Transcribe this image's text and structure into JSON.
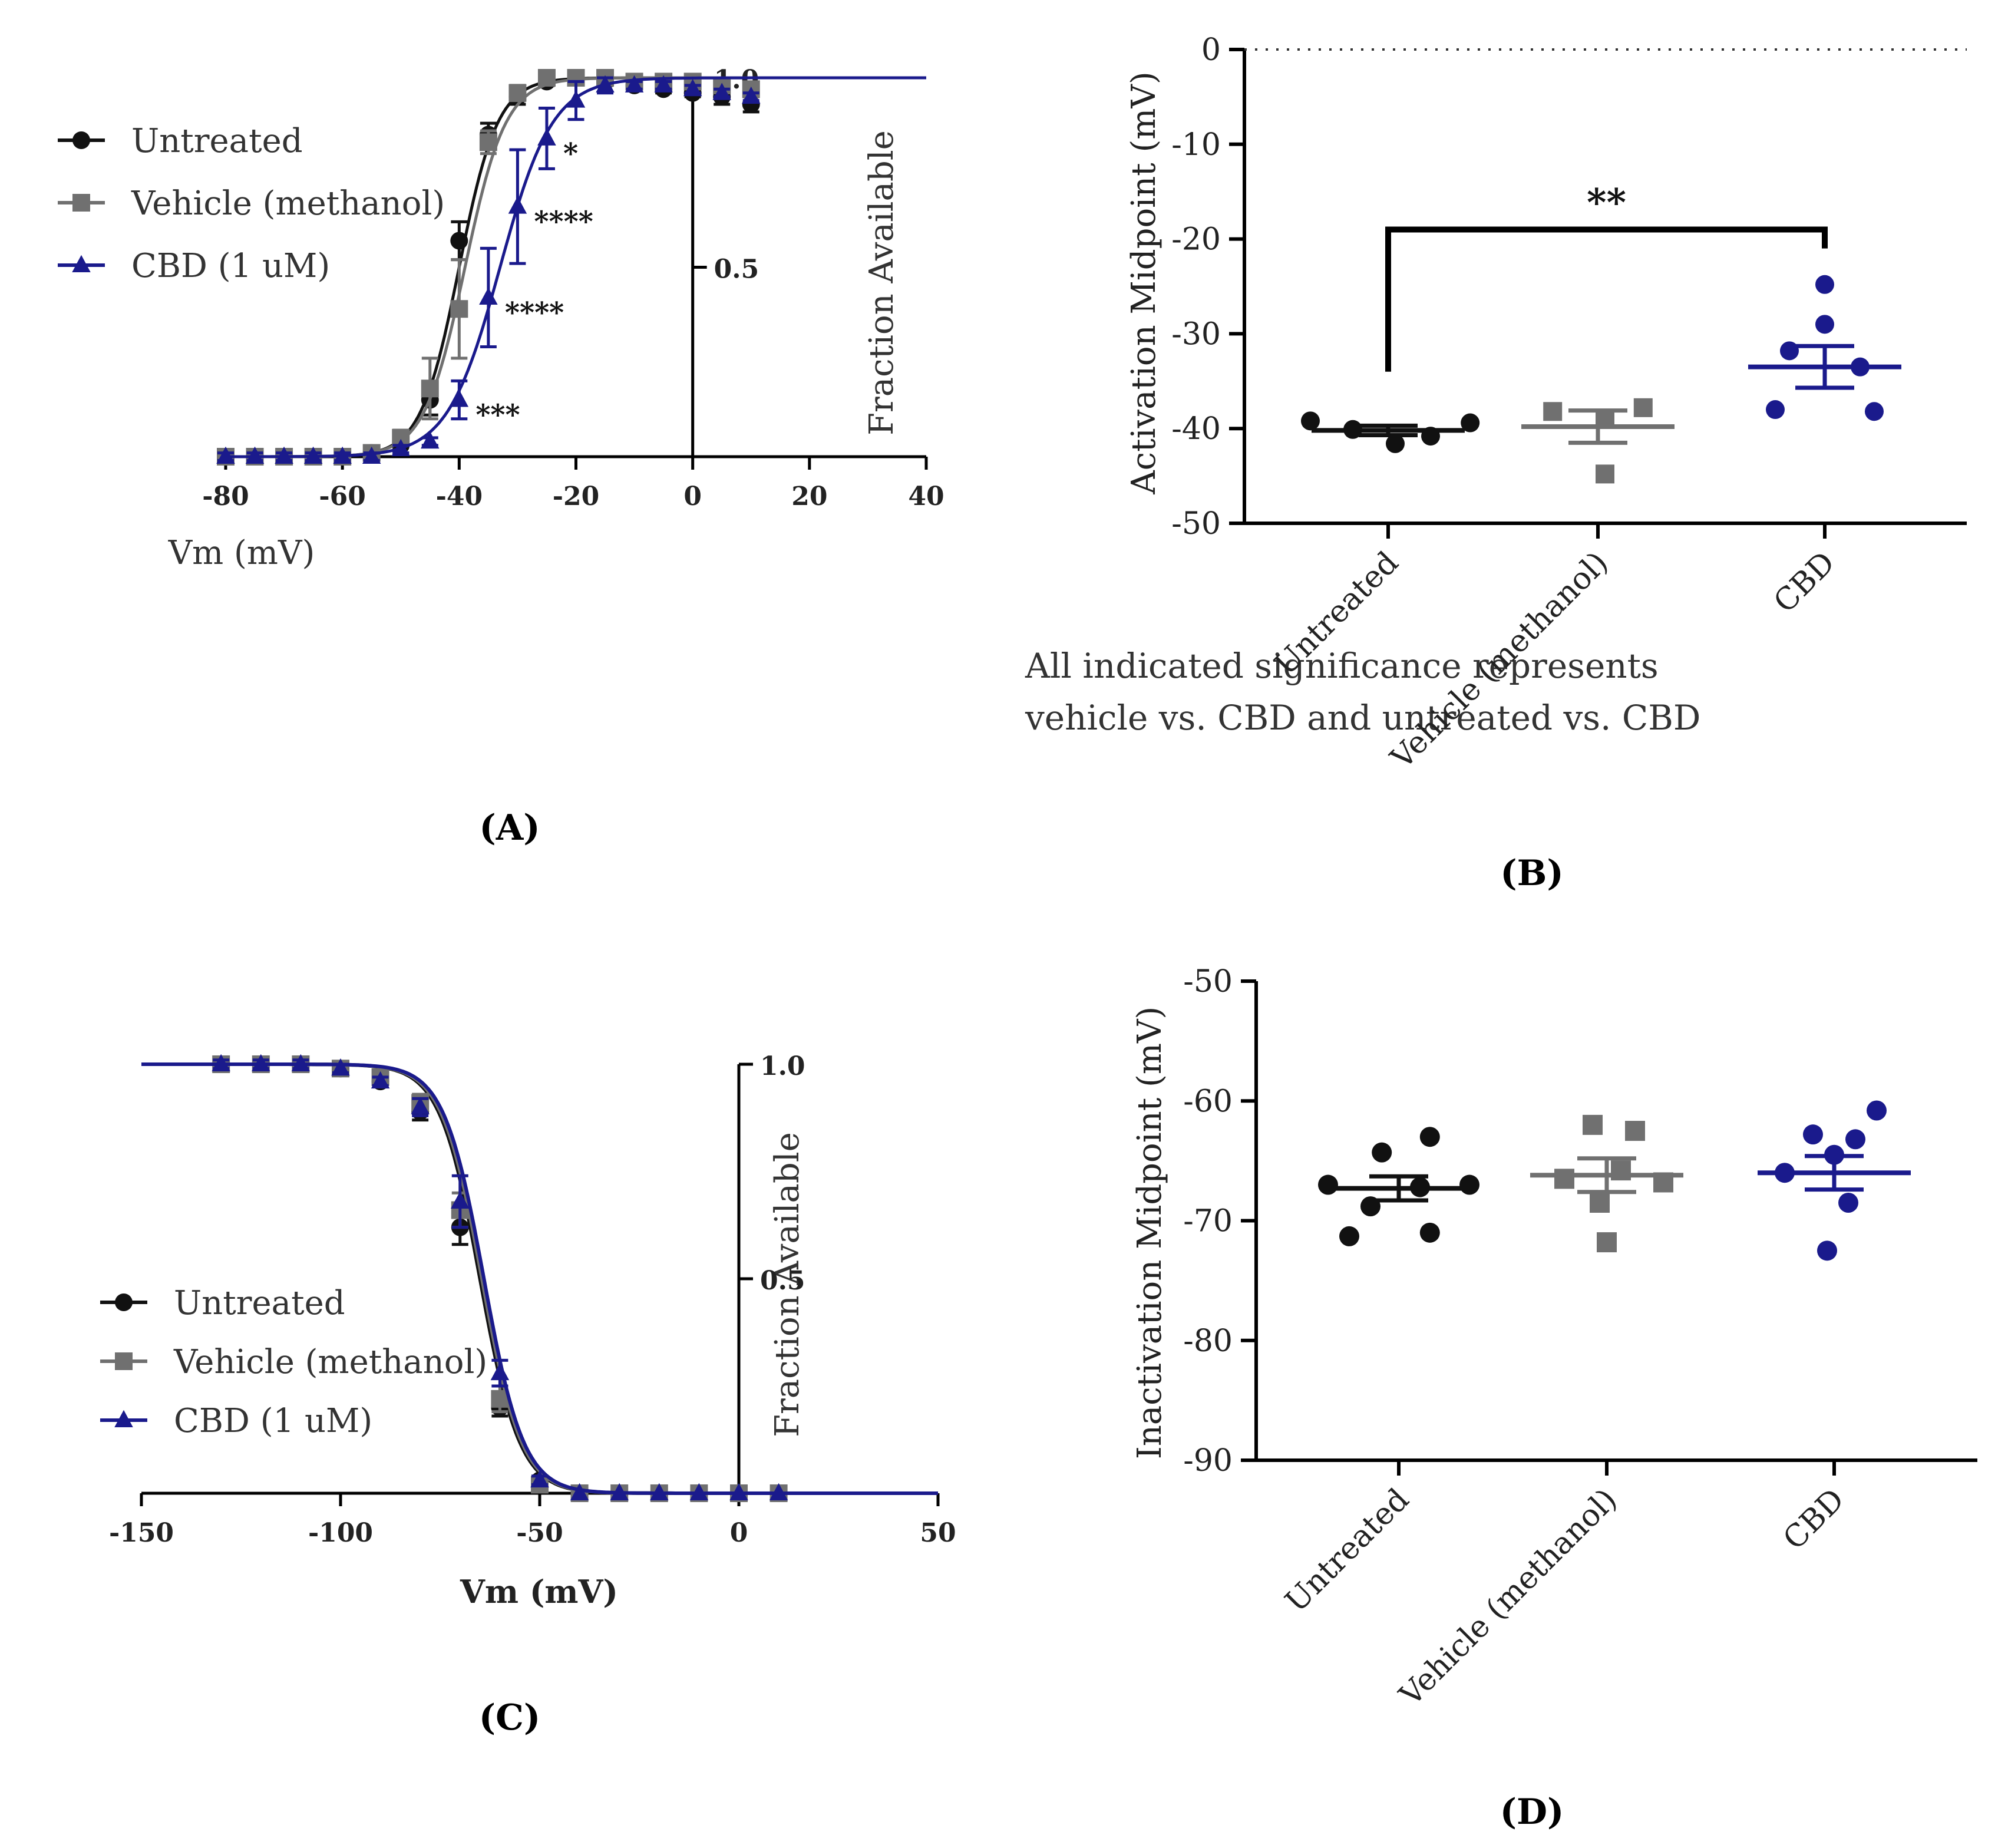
{
  "panels": {
    "A": {
      "label": "(A)",
      "note_line1": "All indicated significance represents",
      "note_line2": "vehicle vs. CBD and untreated vs. CBD"
    },
    "B": {
      "label": "(B)"
    },
    "C": {
      "label": "(C)"
    },
    "D": {
      "label": "(D)"
    }
  },
  "colors": {
    "untreated": "#111111",
    "vehicle": "#707070",
    "cbd": "#1a1a8c"
  },
  "chart_data": [
    {
      "id": "A",
      "type": "line",
      "xlabel": "Vm (mV)",
      "ylabel": "Fraction Available",
      "xlim": [
        -80,
        40
      ],
      "ylim": [
        0,
        1.0
      ],
      "xticks": [
        "-80",
        "-60",
        "-40",
        "-20",
        "0",
        "20",
        "40"
      ],
      "yticks": [
        "0.5",
        "1.0"
      ],
      "legend": [
        "Untreated",
        "Vehicle (methanol)",
        "CBD (1 uM)"
      ],
      "x": [
        -80,
        -75,
        -70,
        -65,
        -60,
        -55,
        -50,
        -45,
        -40,
        -35,
        -30,
        -25,
        -20,
        -15,
        -10,
        -5,
        0,
        5,
        10
      ],
      "series": [
        {
          "name": "Untreated",
          "marker": "circle",
          "fit": {
            "v_half": -40,
            "k": 3.3
          },
          "values": [
            0,
            0,
            0,
            0,
            0,
            0.01,
            0.03,
            0.15,
            0.57,
            0.85,
            0.95,
            0.99,
            1.0,
            0.99,
            0.98,
            0.97,
            0.96,
            0.95,
            0.93
          ],
          "err": [
            0.01,
            0.01,
            0.01,
            0.01,
            0.01,
            0.01,
            0.02,
            0.04,
            0.05,
            0.03,
            0.02,
            0.01,
            0.01,
            0.01,
            0.01,
            0.01,
            0.01,
            0.02,
            0.02
          ]
        },
        {
          "name": "Vehicle (methanol)",
          "marker": "square",
          "fit": {
            "v_half": -39,
            "k": 3.5
          },
          "values": [
            0,
            0,
            0,
            0,
            0,
            0.01,
            0.05,
            0.18,
            0.39,
            0.83,
            0.96,
            1.0,
            1.0,
            1.0,
            0.99,
            0.99,
            0.99,
            0.98,
            0.97
          ],
          "err": [
            0.01,
            0.01,
            0.01,
            0.01,
            0.01,
            0.01,
            0.02,
            0.08,
            0.13,
            0.03,
            0.02,
            0.01,
            0.01,
            0.01,
            0.01,
            0.01,
            0.01,
            0.01,
            0.01
          ]
        },
        {
          "name": "CBD (1 uM)",
          "marker": "triangle",
          "fit": {
            "v_half": -33,
            "k": 4.5
          },
          "values": [
            0,
            0,
            0,
            0,
            0,
            0,
            0.02,
            0.04,
            0.15,
            0.42,
            0.66,
            0.84,
            0.94,
            0.98,
            0.98,
            0.98,
            0.97,
            0.96,
            0.95
          ],
          "err": [
            0.01,
            0.01,
            0.01,
            0.01,
            0.01,
            0.01,
            0.01,
            0.01,
            0.05,
            0.13,
            0.15,
            0.08,
            0.05,
            0.02,
            0.01,
            0.01,
            0.01,
            0.01,
            0.01
          ]
        }
      ],
      "annotations": [
        {
          "x": -40,
          "y": 0.15,
          "text": "***"
        },
        {
          "x": -35,
          "y": 0.42,
          "text": "****"
        },
        {
          "x": -30,
          "y": 0.66,
          "text": "****"
        },
        {
          "x": -25,
          "y": 0.84,
          "text": "*"
        }
      ]
    },
    {
      "id": "B",
      "type": "scatter",
      "ylabel": "Activation  Midpoint (mV)",
      "ylim": [
        -50,
        0
      ],
      "yticks": [
        "0",
        "-10",
        "-20",
        "-30",
        "-40",
        "-50"
      ],
      "categories": [
        "Untreated",
        "Vehicle (methanol)",
        "CBD"
      ],
      "series": [
        {
          "name": "Untreated",
          "marker": "circle",
          "mean": -40.2,
          "sem": 0.5,
          "points": [
            -39.2,
            -40.1,
            -41.6,
            -40.8,
            -39.4
          ],
          "offsets": [
            -0.55,
            -0.25,
            0.05,
            0.3,
            0.58
          ]
        },
        {
          "name": "Vehicle (methanol)",
          "marker": "square",
          "mean": -39.8,
          "sem": 1.7,
          "points": [
            -38.2,
            -39.0,
            -37.8,
            -44.8
          ],
          "offsets": [
            -0.32,
            0.05,
            0.32,
            0.05
          ]
        },
        {
          "name": "CBD",
          "marker": "circle",
          "mean": -33.5,
          "sem": 2.2,
          "points": [
            -24.8,
            -29.0,
            -31.8,
            -33.5,
            -38.0,
            -38.2
          ],
          "offsets": [
            0.0,
            0.0,
            -0.25,
            0.25,
            -0.35,
            0.35
          ]
        }
      ],
      "significance": {
        "from": "Untreated",
        "to": "CBD",
        "y": -19,
        "text": "**"
      },
      "reference_line": 0
    },
    {
      "id": "C",
      "type": "line",
      "xlabel": "Vm (mV)",
      "ylabel": "Fraction Available",
      "xlim": [
        -150,
        50
      ],
      "ylim": [
        0,
        1.0
      ],
      "xticks": [
        "-150",
        "-100",
        "-50",
        "0",
        "50"
      ],
      "yticks": [
        "0.5",
        "1.0"
      ],
      "legend": [
        "Untreated",
        "Vehicle (methanol)",
        "CBD (1 uM)"
      ],
      "x": [
        -130,
        -120,
        -110,
        -100,
        -90,
        -80,
        -70,
        -60,
        -50,
        -40,
        -30,
        -20,
        -10,
        0,
        10
      ],
      "series": [
        {
          "name": "Untreated",
          "marker": "circle",
          "fit": {
            "v_half": -65,
            "k": 5.0
          },
          "values": [
            1.0,
            1.0,
            1.0,
            0.99,
            0.96,
            0.89,
            0.62,
            0.2,
            0.03,
            0.0,
            0.0,
            0.0,
            0.0,
            0.0,
            0.0
          ],
          "err": [
            0.01,
            0.01,
            0.01,
            0.01,
            0.01,
            0.02,
            0.04,
            0.02,
            0.01,
            0.01,
            0.0,
            0.0,
            0.0,
            0.0,
            0.0
          ]
        },
        {
          "name": "Vehicle (methanol)",
          "marker": "square",
          "fit": {
            "v_half": -64.5,
            "k": 5.0
          },
          "values": [
            1.0,
            1.0,
            1.0,
            0.99,
            0.97,
            0.91,
            0.66,
            0.22,
            0.02,
            0.0,
            0.0,
            0.0,
            0.0,
            0.0,
            0.0
          ],
          "err": [
            0.01,
            0.01,
            0.01,
            0.01,
            0.01,
            0.02,
            0.04,
            0.03,
            0.01,
            0.0,
            0.0,
            0.0,
            0.0,
            0.0,
            0.0
          ]
        },
        {
          "name": "CBD (1 uM)",
          "marker": "triangle",
          "fit": {
            "v_half": -64,
            "k": 5.0
          },
          "values": [
            1.0,
            1.0,
            1.0,
            0.99,
            0.96,
            0.9,
            0.68,
            0.28,
            0.03,
            0.0,
            0.0,
            0.0,
            0.0,
            0.0,
            0.0
          ],
          "err": [
            0.01,
            0.01,
            0.01,
            0.01,
            0.01,
            0.02,
            0.06,
            0.03,
            0.01,
            0.0,
            0.0,
            0.0,
            0.0,
            0.0,
            0.0
          ]
        }
      ]
    },
    {
      "id": "D",
      "type": "scatter",
      "ylabel": "Inactivation Midpoint (mV)",
      "ylim": [
        -90,
        -50
      ],
      "yticks": [
        "-50",
        "-60",
        "-70",
        "-80",
        "-90"
      ],
      "categories": [
        "Untreated",
        "Vehicle (methanol)",
        "CBD"
      ],
      "series": [
        {
          "name": "Untreated",
          "marker": "circle",
          "mean": -67.3,
          "sem": 1.0,
          "points": [
            -63.0,
            -64.3,
            -67.0,
            -67.2,
            -67.0,
            -68.8,
            -71.3,
            -71.0
          ],
          "offsets": [
            0.22,
            -0.12,
            -0.5,
            0.15,
            0.5,
            -0.2,
            -0.35,
            0.22
          ]
        },
        {
          "name": "Vehicle (methanol)",
          "marker": "square",
          "mean": -66.2,
          "sem": 1.4,
          "points": [
            -62.0,
            -62.5,
            -65.8,
            -66.5,
            -66.8,
            -68.5,
            -71.8
          ],
          "offsets": [
            -0.1,
            0.2,
            0.1,
            -0.3,
            0.4,
            -0.05,
            0.0
          ]
        },
        {
          "name": "CBD",
          "marker": "circle",
          "mean": -66.0,
          "sem": 1.4,
          "points": [
            -60.8,
            -62.8,
            -63.2,
            -64.5,
            -66.0,
            -68.5,
            -72.5
          ],
          "offsets": [
            0.3,
            -0.15,
            0.15,
            0.0,
            -0.35,
            0.1,
            -0.05
          ]
        }
      ]
    }
  ]
}
